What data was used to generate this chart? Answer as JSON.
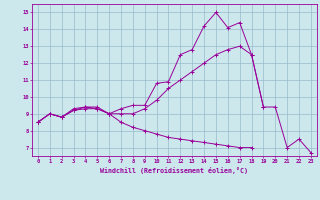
{
  "xlabel": "Windchill (Refroidissement éolien,°C)",
  "xlim": [
    -0.5,
    23.5
  ],
  "ylim": [
    6.5,
    15.5
  ],
  "yticks": [
    7,
    8,
    9,
    10,
    11,
    12,
    13,
    14,
    15
  ],
  "xticks": [
    0,
    1,
    2,
    3,
    4,
    5,
    6,
    7,
    8,
    9,
    10,
    11,
    12,
    13,
    14,
    15,
    16,
    17,
    18,
    19,
    20,
    21,
    22,
    23
  ],
  "background_color": "#cce8ec",
  "line_color": "#990099",
  "grid_color": "#99bbcc",
  "lines": [
    {
      "x": [
        0,
        1,
        2,
        3,
        4,
        5,
        6,
        7,
        8,
        9,
        10,
        11,
        12,
        13,
        14,
        15,
        16,
        17,
        18,
        19,
        20,
        21,
        22,
        23
      ],
      "y": [
        8.5,
        9.0,
        8.8,
        9.3,
        9.4,
        9.3,
        9.0,
        9.3,
        9.5,
        9.5,
        10.8,
        10.9,
        12.5,
        12.8,
        14.2,
        15.0,
        14.1,
        14.4,
        12.5,
        9.4,
        9.4,
        7.0,
        7.5,
        6.7
      ]
    },
    {
      "x": [
        0,
        1,
        2,
        3,
        4,
        5,
        6,
        7,
        8,
        9,
        10,
        11,
        12,
        13,
        14,
        15,
        16,
        17,
        18,
        19
      ],
      "y": [
        8.5,
        9.0,
        8.8,
        9.2,
        9.4,
        9.4,
        9.0,
        9.0,
        9.0,
        9.3,
        9.8,
        10.5,
        11.0,
        11.5,
        12.0,
        12.5,
        12.8,
        13.0,
        12.5,
        9.4
      ]
    },
    {
      "x": [
        0,
        1,
        2,
        3,
        4,
        5,
        6,
        7,
        8,
        9,
        10,
        11,
        12,
        13,
        14,
        15,
        16,
        17,
        18
      ],
      "y": [
        8.5,
        9.0,
        8.8,
        9.2,
        9.3,
        9.3,
        9.0,
        8.5,
        8.2,
        8.0,
        7.8,
        7.6,
        7.5,
        7.4,
        7.3,
        7.2,
        7.1,
        7.0,
        7.0
      ]
    }
  ]
}
